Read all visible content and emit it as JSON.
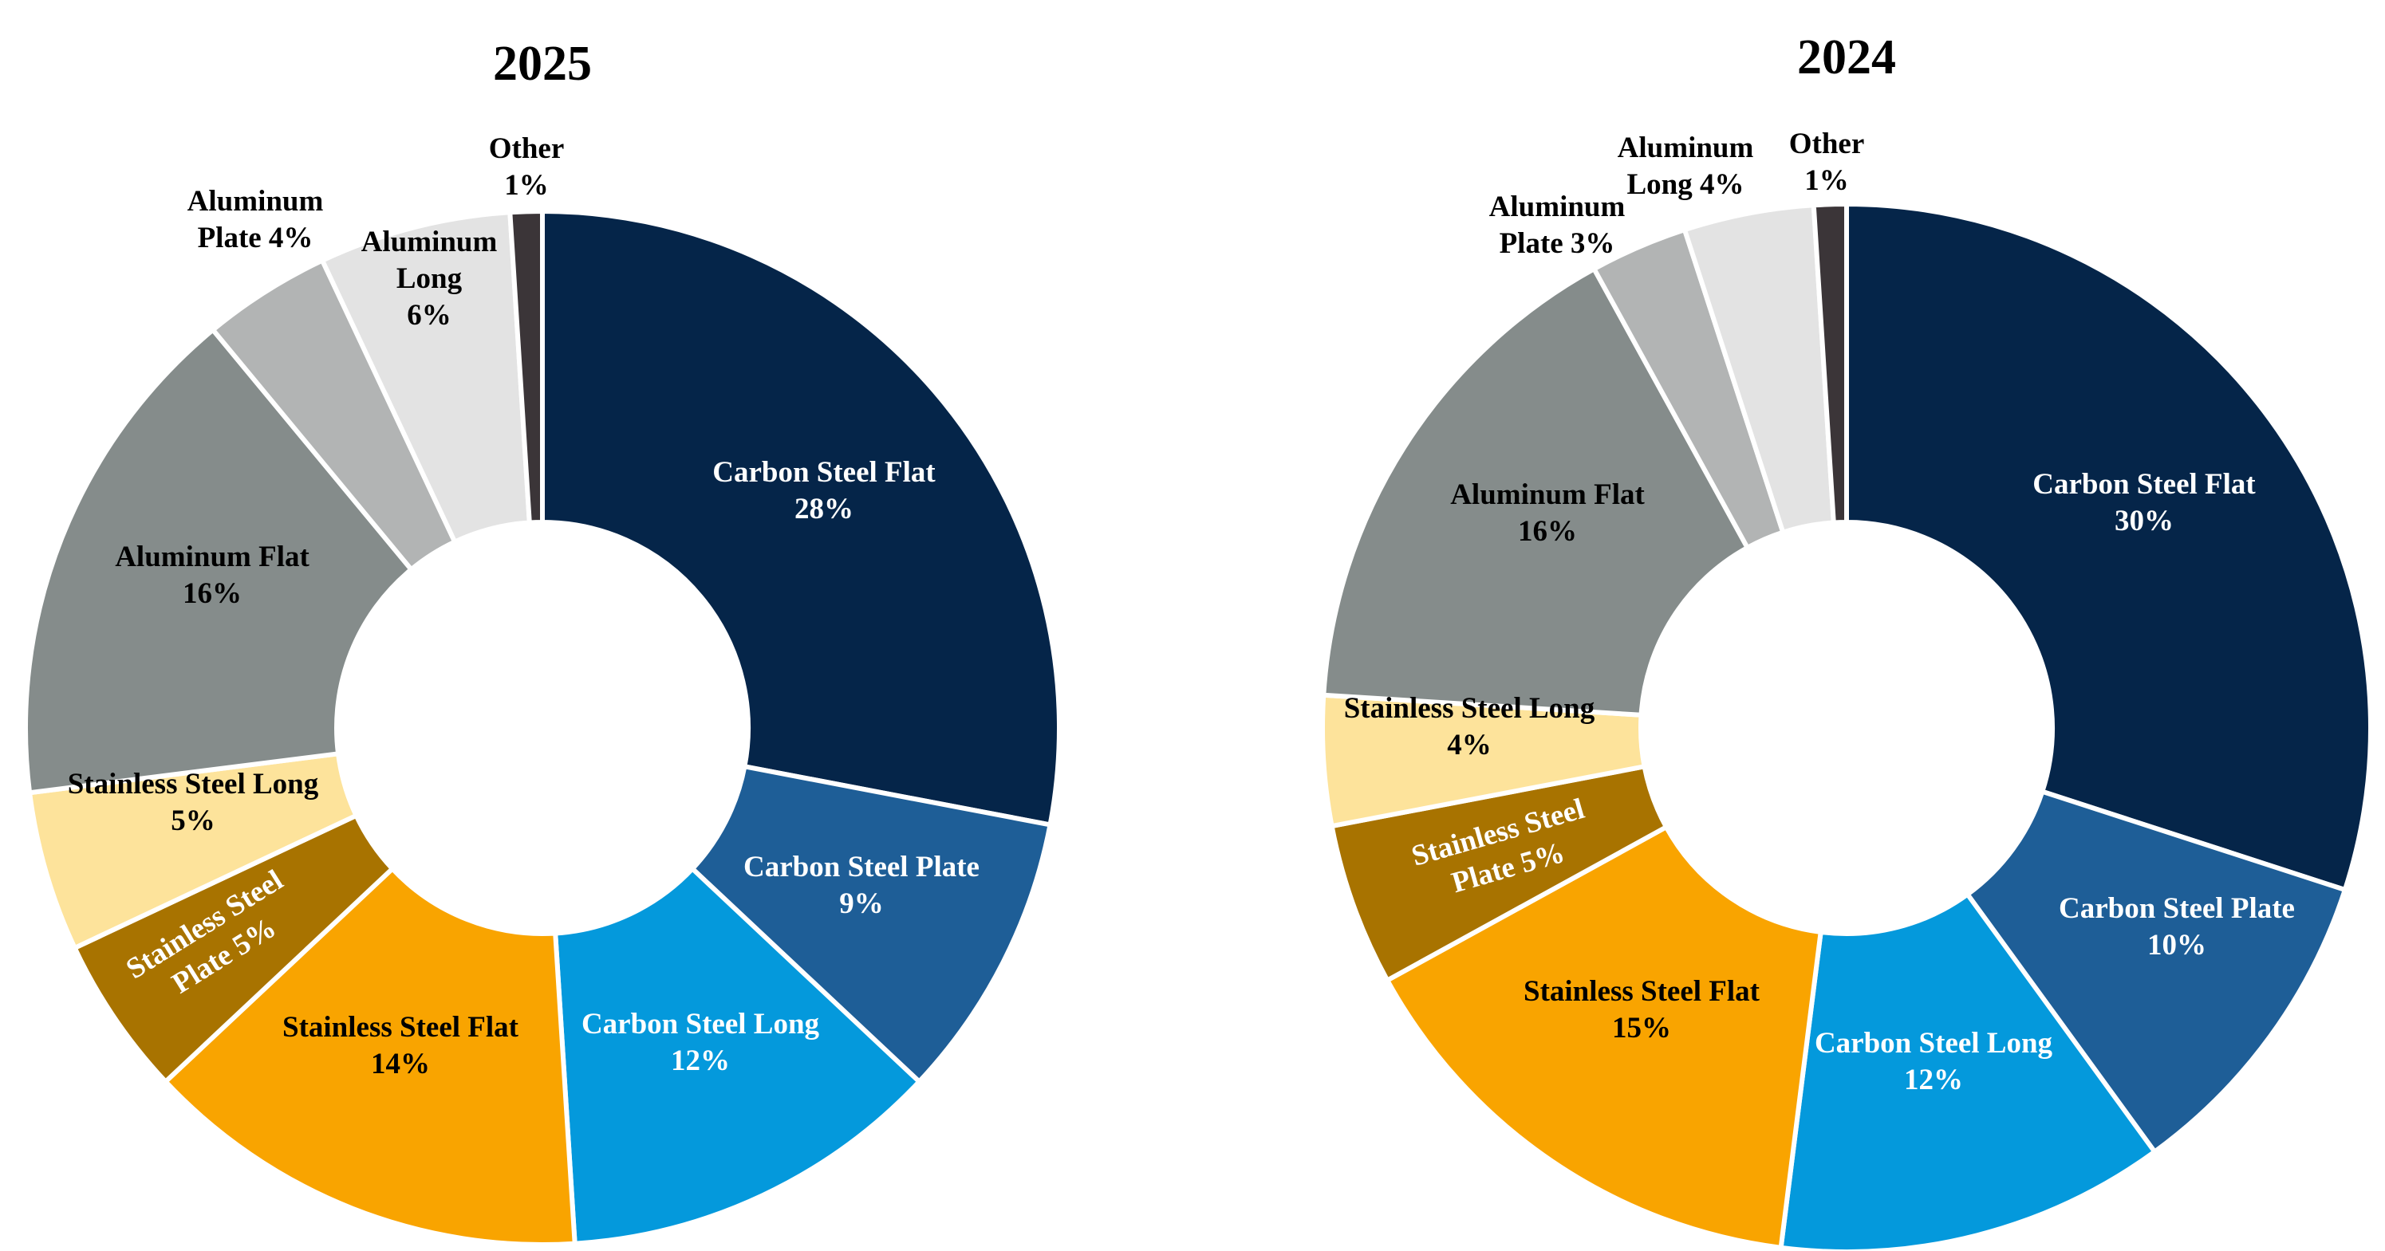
{
  "chart_data": [
    {
      "type": "pie",
      "title": "2025",
      "categories": [
        "Carbon Steel Flat",
        "Carbon Steel Plate",
        "Carbon Steel Long",
        "Stainless Steel Flat",
        "Stainless Steel Plate",
        "Stainless Steel Long",
        "Aluminum Flat",
        "Aluminum Plate",
        "Aluminum Long",
        "Other"
      ],
      "values": [
        28,
        9,
        12,
        14,
        5,
        5,
        16,
        4,
        6,
        1
      ],
      "labels": [
        [
          "Carbon Steel Flat",
          "28%"
        ],
        [
          "Carbon Steel Plate",
          "9%"
        ],
        [
          "Carbon Steel Long",
          "12%"
        ],
        [
          "Stainless Steel Flat",
          "14%"
        ],
        [
          "Stainless Steel",
          "Plate 5%"
        ],
        [
          "Stainless Steel Long",
          "5%"
        ],
        [
          "Aluminum Flat",
          "16%"
        ],
        [
          "Aluminum",
          "Plate 4%"
        ],
        [
          "Aluminum",
          "Long",
          "6%"
        ],
        [
          "Other",
          "1%"
        ]
      ],
      "colors": [
        "#052549",
        "#1e5e97",
        "#0499dc",
        "#f9a400",
        "#a87300",
        "#fde39b",
        "#858c8b",
        "#b2b4b4",
        "#e3e3e3",
        "#3b3538"
      ],
      "label_colors": [
        "#ffffff",
        "#ffffff",
        "#ffffff",
        "#000000",
        "#ffffff",
        "#000000",
        "#000000",
        "#000000",
        "#000000",
        "#000000"
      ],
      "legend": "none"
    },
    {
      "type": "pie",
      "title": "2024",
      "categories": [
        "Carbon Steel Flat",
        "Carbon Steel Plate",
        "Carbon Steel Long",
        "Stainless Steel Flat",
        "Stainless Steel Plate",
        "Stainless Steel Long",
        "Aluminum Flat",
        "Aluminum Plate",
        "Aluminum Long",
        "Other"
      ],
      "values": [
        30,
        10,
        12,
        15,
        5,
        4,
        16,
        3,
        4,
        1
      ],
      "labels": [
        [
          "Carbon Steel Flat",
          "30%"
        ],
        [
          "Carbon Steel Plate",
          "10%"
        ],
        [
          "Carbon Steel Long",
          "12%"
        ],
        [
          "Stainless Steel Flat",
          "15%"
        ],
        [
          "Stainless Steel",
          "Plate 5%"
        ],
        [
          "Stainless Steel Long",
          "4%"
        ],
        [
          "Aluminum Flat",
          "16%"
        ],
        [
          "Aluminum",
          "Plate 3%"
        ],
        [
          "Aluminum",
          "Long 4%"
        ],
        [
          "Other",
          "1%"
        ]
      ],
      "colors": [
        "#052549",
        "#1e5e97",
        "#0499dc",
        "#f9a400",
        "#a87300",
        "#fde39b",
        "#858c8b",
        "#b2b4b4",
        "#e3e3e3",
        "#3b3538"
      ],
      "label_colors": [
        "#ffffff",
        "#ffffff",
        "#ffffff",
        "#000000",
        "#ffffff",
        "#000000",
        "#000000",
        "#000000",
        "#000000",
        "#000000"
      ],
      "legend": "none"
    }
  ]
}
